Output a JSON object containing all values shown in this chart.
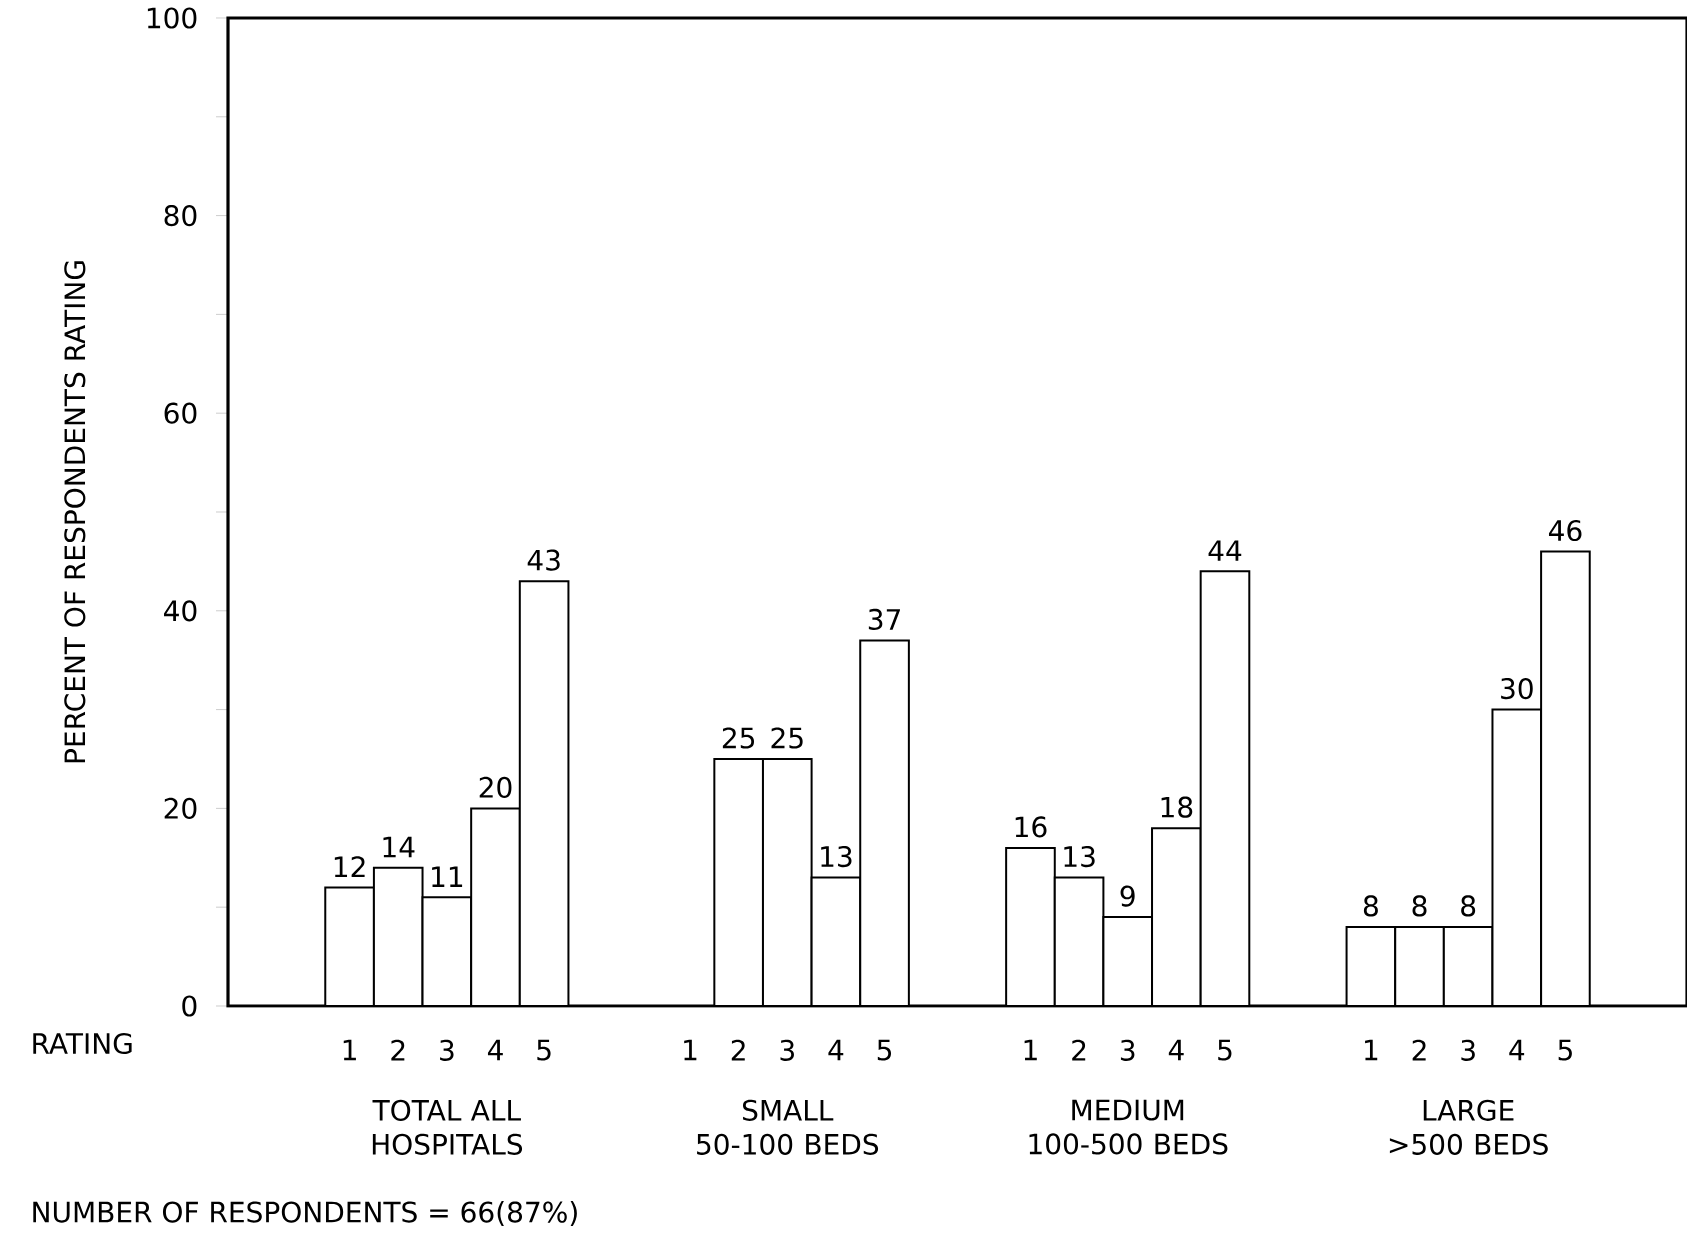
{
  "chart_data": {
    "type": "bar",
    "ylabel": "PERCENT OF RESPONDENTS RATING",
    "xlabel": "RATING",
    "categories": [
      null,
      null,
      "1",
      "2",
      "3",
      "4",
      "5",
      null,
      null,
      "1",
      "2",
      "3",
      "4",
      "5",
      null,
      null,
      "1",
      "2",
      "3",
      "4",
      "5",
      null,
      null,
      "1",
      "2",
      "3",
      "4",
      "5",
      null,
      null
    ],
    "values": [
      null,
      null,
      12,
      14,
      11,
      20,
      43,
      null,
      null,
      null,
      25,
      25,
      13,
      37,
      null,
      null,
      16,
      13,
      9,
      18,
      44,
      null,
      null,
      8,
      8,
      8,
      30,
      46,
      null,
      null
    ],
    "color": "#000000",
    "ylim": [
      0,
      100
    ],
    "yticks": [
      0,
      {
        "value": 10,
        "label": null
      },
      20,
      {
        "value": 30,
        "label": null
      },
      40,
      {
        "value": 50,
        "label": null
      },
      60,
      {
        "value": 70,
        "label": null
      },
      80,
      {
        "value": 90,
        "label": null
      },
      100
    ],
    "value_labels": [
      null,
      null,
      "12",
      "14",
      "11",
      "20",
      "43",
      null,
      null,
      null,
      "25",
      "25",
      "13",
      "37",
      null,
      null,
      "16",
      "13",
      "9",
      "18",
      "44",
      null,
      null,
      "8",
      "8",
      "8",
      "30",
      "46",
      null,
      null
    ],
    "grid": false,
    "annotations": [
      "TOTAL ALL HOSPITALS",
      "SMALL 50-100 BEDS",
      "MEDIUM 100-500 BEDS",
      "LARGE >500 BEDS",
      "NUMBER OF RESPONDENTS = 66(87%)"
    ]
  }
}
